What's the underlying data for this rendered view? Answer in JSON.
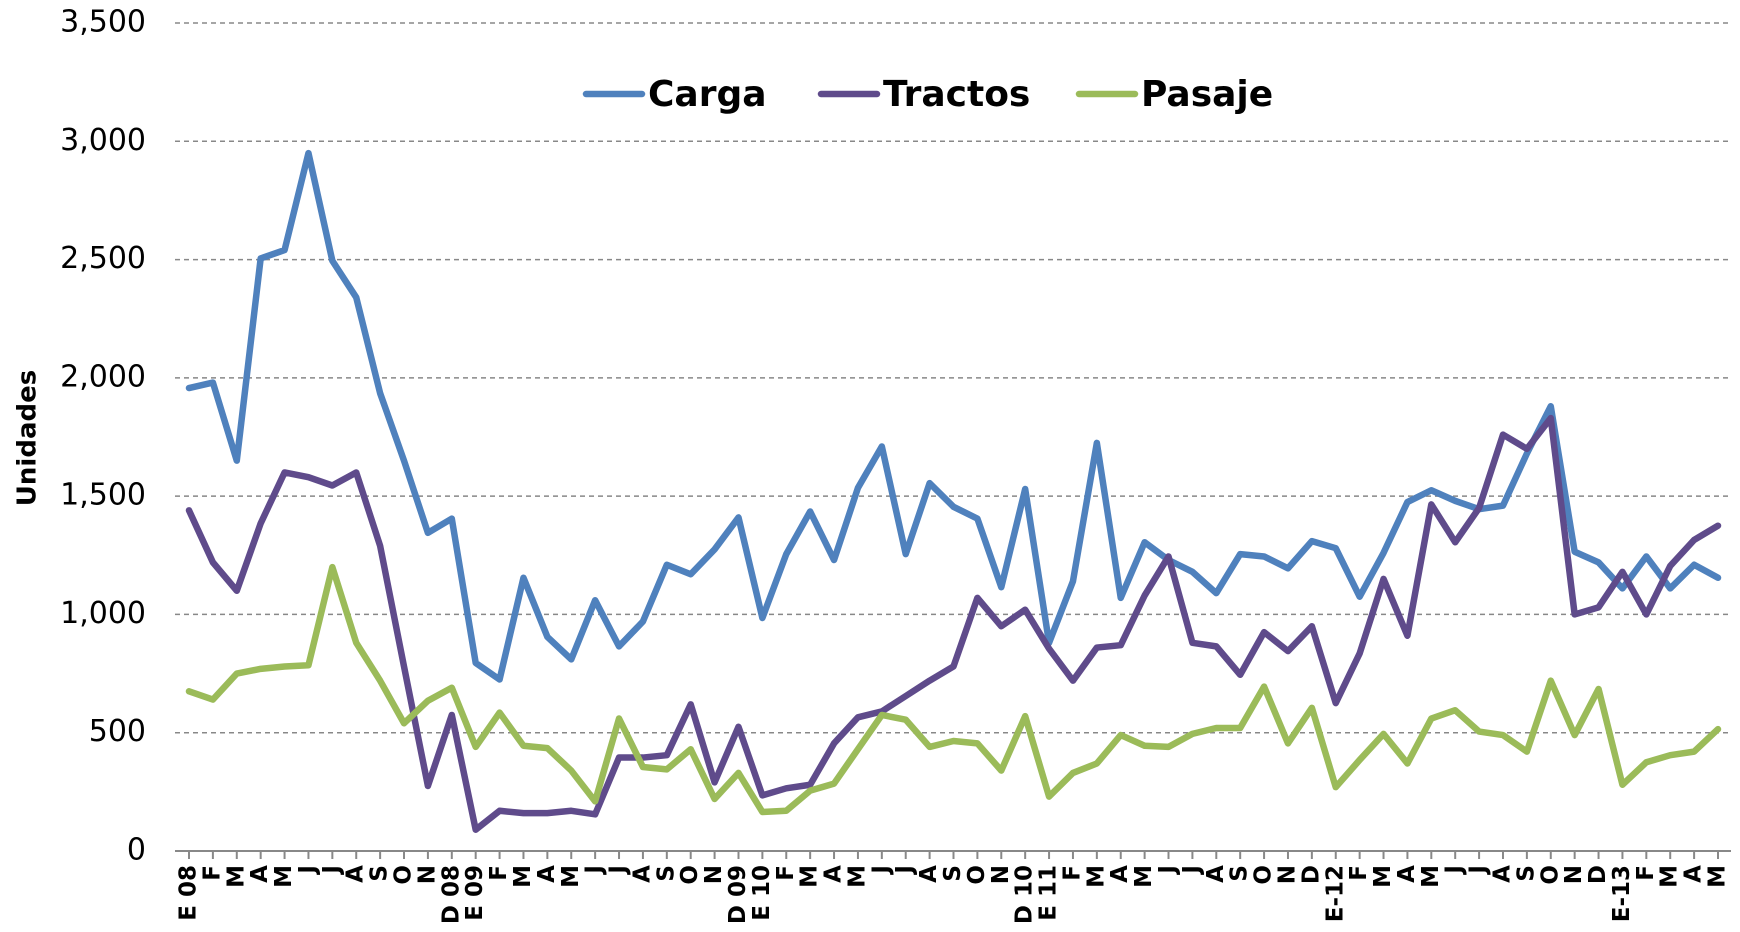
{
  "chart_data": {
    "type": "line",
    "y_label": "Unidades",
    "categories": [
      "E 08",
      "F",
      "M",
      "A",
      "M",
      "J",
      "J",
      "A",
      "S",
      "O",
      "N",
      "D 08",
      "E 09",
      "F",
      "M",
      "A",
      "M",
      "J",
      "J",
      "A",
      "S",
      "O",
      "N",
      "D 09",
      "E 10",
      "F",
      "M",
      "A",
      "M",
      "J",
      "J",
      "A",
      "S",
      "O",
      "N",
      "D 10",
      "E 11",
      "F",
      "M",
      "A",
      "M",
      "J",
      "J",
      "A",
      "S",
      "O",
      "N",
      "D",
      "E-12",
      "F",
      "M",
      "A",
      "M",
      "J",
      "J",
      "A",
      "S",
      "O",
      "N",
      "D",
      "E-13",
      "F",
      "M",
      "A",
      "M"
    ],
    "series": [
      {
        "name": "Carga",
        "color": "#4f81bd",
        "values": [
          1957,
          1980,
          1650,
          2505,
          2540,
          2950,
          2495,
          2340,
          1935,
          1650,
          1345,
          1405,
          795,
          725,
          1155,
          905,
          810,
          1060,
          865,
          970,
          1210,
          1170,
          1275,
          1410,
          985,
          1255,
          1435,
          1230,
          1535,
          1710,
          1255,
          1555,
          1455,
          1405,
          1115,
          1530,
          880,
          1140,
          1725,
          1070,
          1305,
          1230,
          1180,
          1090,
          1255,
          1245,
          1195,
          1310,
          1280,
          1075,
          1260,
          1475,
          1525,
          1480,
          1445,
          1460,
          1680,
          1880,
          1265,
          1220,
          1110,
          1245,
          1110,
          1210,
          1155
        ]
      },
      {
        "name": "Tractos",
        "color": "#5f4b8b",
        "values": [
          1440,
          1220,
          1100,
          1385,
          1600,
          1580,
          1545,
          1600,
          1290,
          780,
          275,
          575,
          90,
          170,
          160,
          160,
          170,
          155,
          395,
          395,
          405,
          620,
          290,
          525,
          235,
          265,
          280,
          455,
          565,
          590,
          655,
          720,
          780,
          1070,
          950,
          1020,
          855,
          720,
          860,
          870,
          1080,
          1245,
          880,
          865,
          745,
          925,
          845,
          950,
          625,
          835,
          1150,
          910,
          1465,
          1305,
          1450,
          1760,
          1700,
          1830,
          1000,
          1030,
          1180,
          1000,
          1205,
          1315,
          1375
        ]
      },
      {
        "name": "Pasaje",
        "color": "#9bbb59",
        "values": [
          675,
          640,
          750,
          770,
          780,
          785,
          1200,
          880,
          720,
          540,
          635,
          690,
          440,
          585,
          445,
          435,
          340,
          210,
          560,
          355,
          345,
          430,
          220,
          330,
          165,
          170,
          255,
          285,
          430,
          575,
          555,
          440,
          465,
          455,
          340,
          570,
          230,
          330,
          370,
          490,
          445,
          440,
          495,
          520,
          520,
          695,
          455,
          605,
          270,
          385,
          495,
          370,
          560,
          595,
          505,
          490,
          420,
          720,
          490,
          685,
          280,
          375,
          405,
          420,
          515
        ]
      }
    ],
    "ylim": [
      0,
      3500
    ],
    "yticks": [
      0,
      500,
      {
        "value": 1000,
        "label": "1,000"
      },
      {
        "value": 1500,
        "label": "1,500"
      },
      {
        "value": 2000,
        "label": "2,000"
      },
      {
        "value": 2500,
        "label": "2,500"
      },
      {
        "value": 3000,
        "label": "3,000"
      },
      {
        "value": 3500,
        "label": "3,500"
      }
    ],
    "grid": true,
    "legend": "top"
  }
}
